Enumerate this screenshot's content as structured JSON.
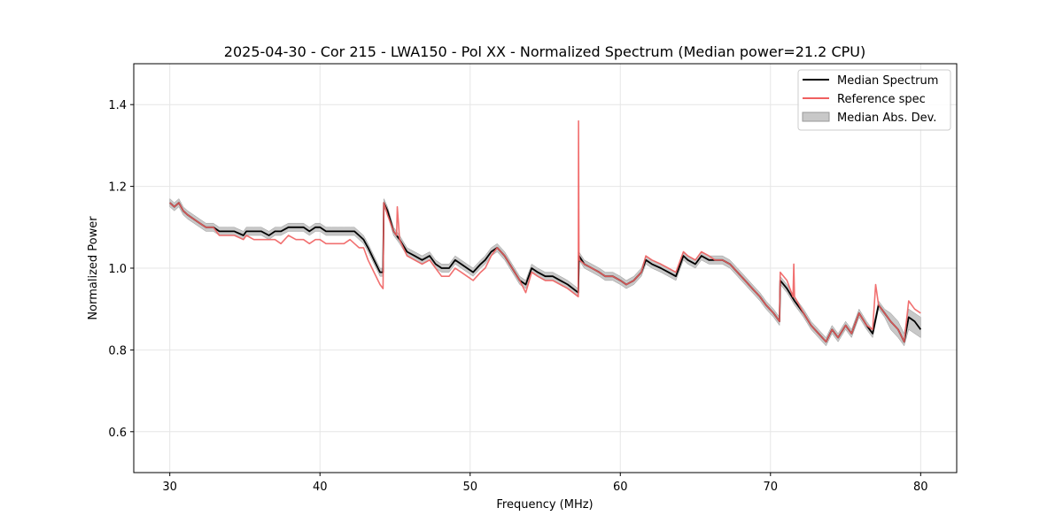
{
  "chart_data": {
    "type": "line",
    "title": "2025-04-30 - Cor 215 - LWA150 - Pol XX - Normalized Spectrum (Median power=21.2 CPU)",
    "xlabel": "Frequency (MHz)",
    "ylabel": "Normalized Power",
    "xlim": [
      27.6,
      82.4
    ],
    "ylim": [
      0.5,
      1.5
    ],
    "xticks": [
      30,
      40,
      50,
      60,
      70,
      80
    ],
    "yticks": [
      0.6,
      0.8,
      1.0,
      1.2,
      1.4
    ],
    "grid": true,
    "legend_position": "top-right",
    "legend": {
      "median": "Median Spectrum",
      "reference": "Reference spec",
      "mad": "Median Abs. Dev."
    },
    "colors": {
      "median": "#000000",
      "reference": "#f06060",
      "mad_fill": "#c8c8c8"
    },
    "series": [
      {
        "name": "Median Spectrum",
        "x": [
          30.0,
          30.3,
          30.6,
          30.9,
          31.2,
          31.6,
          32.0,
          32.4,
          32.9,
          33.3,
          33.8,
          34.3,
          34.9,
          35.1,
          35.6,
          36.1,
          36.6,
          37.0,
          37.4,
          37.9,
          38.4,
          38.9,
          39.3,
          39.7,
          40.0,
          40.4,
          40.8,
          41.2,
          41.6,
          42.0,
          42.3,
          42.6,
          42.9,
          43.2,
          43.6,
          44.0,
          44.2,
          44.25,
          44.5,
          44.9,
          45.3,
          45.8,
          46.3,
          46.8,
          47.3,
          47.7,
          48.1,
          48.6,
          49.0,
          49.4,
          49.8,
          50.2,
          50.7,
          51.0,
          51.4,
          51.8,
          52.3,
          52.8,
          53.3,
          53.7,
          54.1,
          54.5,
          55.0,
          55.5,
          56.0,
          56.5,
          57.2,
          57.25,
          57.6,
          58.1,
          58.6,
          59.0,
          59.5,
          60.0,
          60.4,
          60.9,
          61.4,
          61.7,
          62.1,
          62.7,
          63.2,
          63.7,
          64.2,
          64.5,
          65.0,
          65.4,
          65.9,
          66.3,
          66.8,
          67.3,
          67.8,
          68.3,
          68.8,
          69.3,
          69.7,
          70.2,
          70.6,
          70.65,
          71.1,
          71.6,
          72.2,
          72.7,
          73.2,
          73.7,
          74.1,
          74.5,
          75.0,
          75.4,
          75.9,
          76.4,
          76.8,
          77.2,
          77.6,
          78.0,
          78.5,
          78.9,
          79.2,
          79.6,
          80.0
        ],
        "y": [
          1.16,
          1.15,
          1.16,
          1.14,
          1.13,
          1.12,
          1.11,
          1.1,
          1.1,
          1.09,
          1.09,
          1.09,
          1.08,
          1.09,
          1.09,
          1.09,
          1.08,
          1.09,
          1.09,
          1.1,
          1.1,
          1.1,
          1.09,
          1.1,
          1.1,
          1.09,
          1.09,
          1.09,
          1.09,
          1.09,
          1.09,
          1.08,
          1.07,
          1.05,
          1.02,
          0.99,
          0.99,
          1.16,
          1.14,
          1.09,
          1.07,
          1.04,
          1.03,
          1.02,
          1.03,
          1.01,
          1.0,
          1.0,
          1.02,
          1.01,
          1.0,
          0.99,
          1.01,
          1.02,
          1.04,
          1.05,
          1.03,
          1.0,
          0.97,
          0.96,
          1.0,
          0.99,
          0.98,
          0.98,
          0.97,
          0.96,
          0.94,
          1.03,
          1.01,
          1.0,
          0.99,
          0.98,
          0.98,
          0.97,
          0.96,
          0.97,
          0.99,
          1.02,
          1.01,
          1.0,
          0.99,
          0.98,
          1.03,
          1.02,
          1.01,
          1.03,
          1.02,
          1.02,
          1.02,
          1.01,
          0.99,
          0.97,
          0.95,
          0.93,
          0.91,
          0.89,
          0.87,
          0.97,
          0.95,
          0.92,
          0.89,
          0.86,
          0.84,
          0.82,
          0.85,
          0.83,
          0.86,
          0.84,
          0.89,
          0.86,
          0.84,
          0.91,
          0.89,
          0.87,
          0.85,
          0.82,
          0.88,
          0.87,
          0.85
        ],
        "mad_lower": [
          1.15,
          1.14,
          1.15,
          1.13,
          1.12,
          1.11,
          1.1,
          1.09,
          1.09,
          1.08,
          1.08,
          1.08,
          1.07,
          1.08,
          1.08,
          1.08,
          1.07,
          1.08,
          1.08,
          1.09,
          1.09,
          1.09,
          1.08,
          1.09,
          1.09,
          1.08,
          1.08,
          1.08,
          1.08,
          1.08,
          1.08,
          1.07,
          1.06,
          1.04,
          1.01,
          0.98,
          0.98,
          1.15,
          1.13,
          1.08,
          1.06,
          1.03,
          1.02,
          1.01,
          1.02,
          1.0,
          0.99,
          0.99,
          1.01,
          1.0,
          0.99,
          0.98,
          1.0,
          1.01,
          1.03,
          1.04,
          1.02,
          0.99,
          0.96,
          0.95,
          0.99,
          0.98,
          0.97,
          0.97,
          0.96,
          0.95,
          0.93,
          1.02,
          1.0,
          0.99,
          0.98,
          0.97,
          0.97,
          0.96,
          0.95,
          0.96,
          0.98,
          1.01,
          1.0,
          0.99,
          0.98,
          0.97,
          1.02,
          1.01,
          1.0,
          1.02,
          1.01,
          1.01,
          1.01,
          1.0,
          0.98,
          0.96,
          0.94,
          0.92,
          0.9,
          0.88,
          0.86,
          0.96,
          0.94,
          0.91,
          0.88,
          0.85,
          0.83,
          0.81,
          0.84,
          0.82,
          0.85,
          0.83,
          0.88,
          0.85,
          0.83,
          0.9,
          0.88,
          0.85,
          0.83,
          0.81,
          0.85,
          0.84,
          0.83
        ],
        "mad_upper": [
          1.17,
          1.16,
          1.17,
          1.15,
          1.14,
          1.13,
          1.12,
          1.11,
          1.11,
          1.1,
          1.1,
          1.1,
          1.09,
          1.1,
          1.1,
          1.1,
          1.09,
          1.1,
          1.1,
          1.11,
          1.11,
          1.11,
          1.1,
          1.11,
          1.11,
          1.1,
          1.1,
          1.1,
          1.1,
          1.1,
          1.1,
          1.09,
          1.08,
          1.06,
          1.03,
          1.0,
          1.0,
          1.17,
          1.15,
          1.1,
          1.08,
          1.05,
          1.04,
          1.03,
          1.04,
          1.02,
          1.01,
          1.01,
          1.03,
          1.02,
          1.01,
          1.0,
          1.02,
          1.03,
          1.05,
          1.06,
          1.04,
          1.01,
          0.98,
          0.97,
          1.01,
          1.0,
          0.99,
          0.99,
          0.98,
          0.97,
          0.95,
          1.04,
          1.02,
          1.01,
          1.0,
          0.99,
          0.99,
          0.98,
          0.97,
          0.98,
          1.0,
          1.03,
          1.02,
          1.01,
          1.0,
          0.99,
          1.04,
          1.03,
          1.02,
          1.04,
          1.03,
          1.03,
          1.03,
          1.02,
          1.0,
          0.98,
          0.96,
          0.94,
          0.92,
          0.9,
          0.88,
          0.98,
          0.96,
          0.93,
          0.9,
          0.87,
          0.85,
          0.83,
          0.86,
          0.84,
          0.87,
          0.85,
          0.9,
          0.87,
          0.85,
          0.92,
          0.9,
          0.89,
          0.87,
          0.84,
          0.9,
          0.89,
          0.88
        ]
      },
      {
        "name": "Reference spec",
        "x": [
          30.0,
          30.3,
          30.6,
          30.9,
          31.2,
          31.6,
          32.0,
          32.4,
          32.9,
          33.3,
          33.8,
          34.3,
          34.9,
          35.1,
          35.6,
          36.1,
          36.6,
          37.0,
          37.4,
          37.9,
          38.4,
          38.9,
          39.3,
          39.7,
          40.0,
          40.4,
          40.8,
          41.2,
          41.6,
          42.0,
          42.3,
          42.6,
          42.9,
          43.2,
          43.6,
          44.0,
          44.2,
          44.25,
          44.5,
          44.9,
          45.1,
          45.15,
          45.3,
          45.8,
          46.3,
          46.8,
          47.3,
          47.7,
          48.1,
          48.6,
          49.0,
          49.4,
          49.8,
          50.2,
          50.7,
          51.0,
          51.4,
          51.8,
          52.3,
          52.8,
          53.3,
          53.7,
          54.1,
          54.5,
          55.0,
          55.5,
          56.0,
          56.5,
          57.2,
          57.22,
          57.25,
          57.28,
          57.6,
          58.1,
          58.6,
          59.0,
          59.5,
          60.0,
          60.4,
          60.9,
          61.4,
          61.7,
          62.1,
          62.7,
          63.2,
          63.7,
          64.2,
          64.5,
          65.0,
          65.4,
          65.9,
          66.3,
          66.8,
          67.3,
          67.8,
          68.3,
          68.8,
          69.3,
          69.7,
          70.2,
          70.6,
          70.65,
          71.1,
          71.5,
          71.55,
          71.6,
          72.2,
          72.7,
          73.2,
          73.7,
          74.1,
          74.5,
          75.0,
          75.4,
          75.9,
          76.4,
          76.8,
          76.95,
          77.0,
          77.2,
          77.6,
          78.0,
          78.5,
          78.9,
          79.2,
          79.6,
          80.0
        ],
        "y": [
          1.16,
          1.15,
          1.16,
          1.14,
          1.13,
          1.12,
          1.11,
          1.1,
          1.1,
          1.08,
          1.08,
          1.08,
          1.07,
          1.08,
          1.07,
          1.07,
          1.07,
          1.07,
          1.06,
          1.08,
          1.07,
          1.07,
          1.06,
          1.07,
          1.07,
          1.06,
          1.06,
          1.06,
          1.06,
          1.07,
          1.06,
          1.05,
          1.05,
          1.02,
          0.99,
          0.96,
          0.95,
          1.16,
          1.13,
          1.09,
          1.08,
          1.15,
          1.07,
          1.03,
          1.02,
          1.01,
          1.02,
          1.0,
          0.98,
          0.98,
          1.0,
          0.99,
          0.98,
          0.97,
          0.99,
          1.0,
          1.03,
          1.05,
          1.03,
          1.0,
          0.97,
          0.94,
          0.99,
          0.98,
          0.97,
          0.97,
          0.96,
          0.95,
          0.93,
          1.36,
          1.03,
          1.02,
          1.01,
          1.0,
          0.99,
          0.98,
          0.98,
          0.97,
          0.96,
          0.97,
          0.99,
          1.03,
          1.02,
          1.01,
          1.0,
          0.99,
          1.04,
          1.03,
          1.02,
          1.04,
          1.03,
          1.02,
          1.02,
          1.01,
          0.99,
          0.97,
          0.95,
          0.93,
          0.91,
          0.89,
          0.87,
          0.99,
          0.97,
          0.93,
          1.01,
          0.93,
          0.89,
          0.86,
          0.84,
          0.82,
          0.85,
          0.83,
          0.86,
          0.84,
          0.89,
          0.86,
          0.85,
          0.93,
          0.96,
          0.91,
          0.89,
          0.87,
          0.85,
          0.82,
          0.92,
          0.9,
          0.89
        ]
      }
    ]
  }
}
